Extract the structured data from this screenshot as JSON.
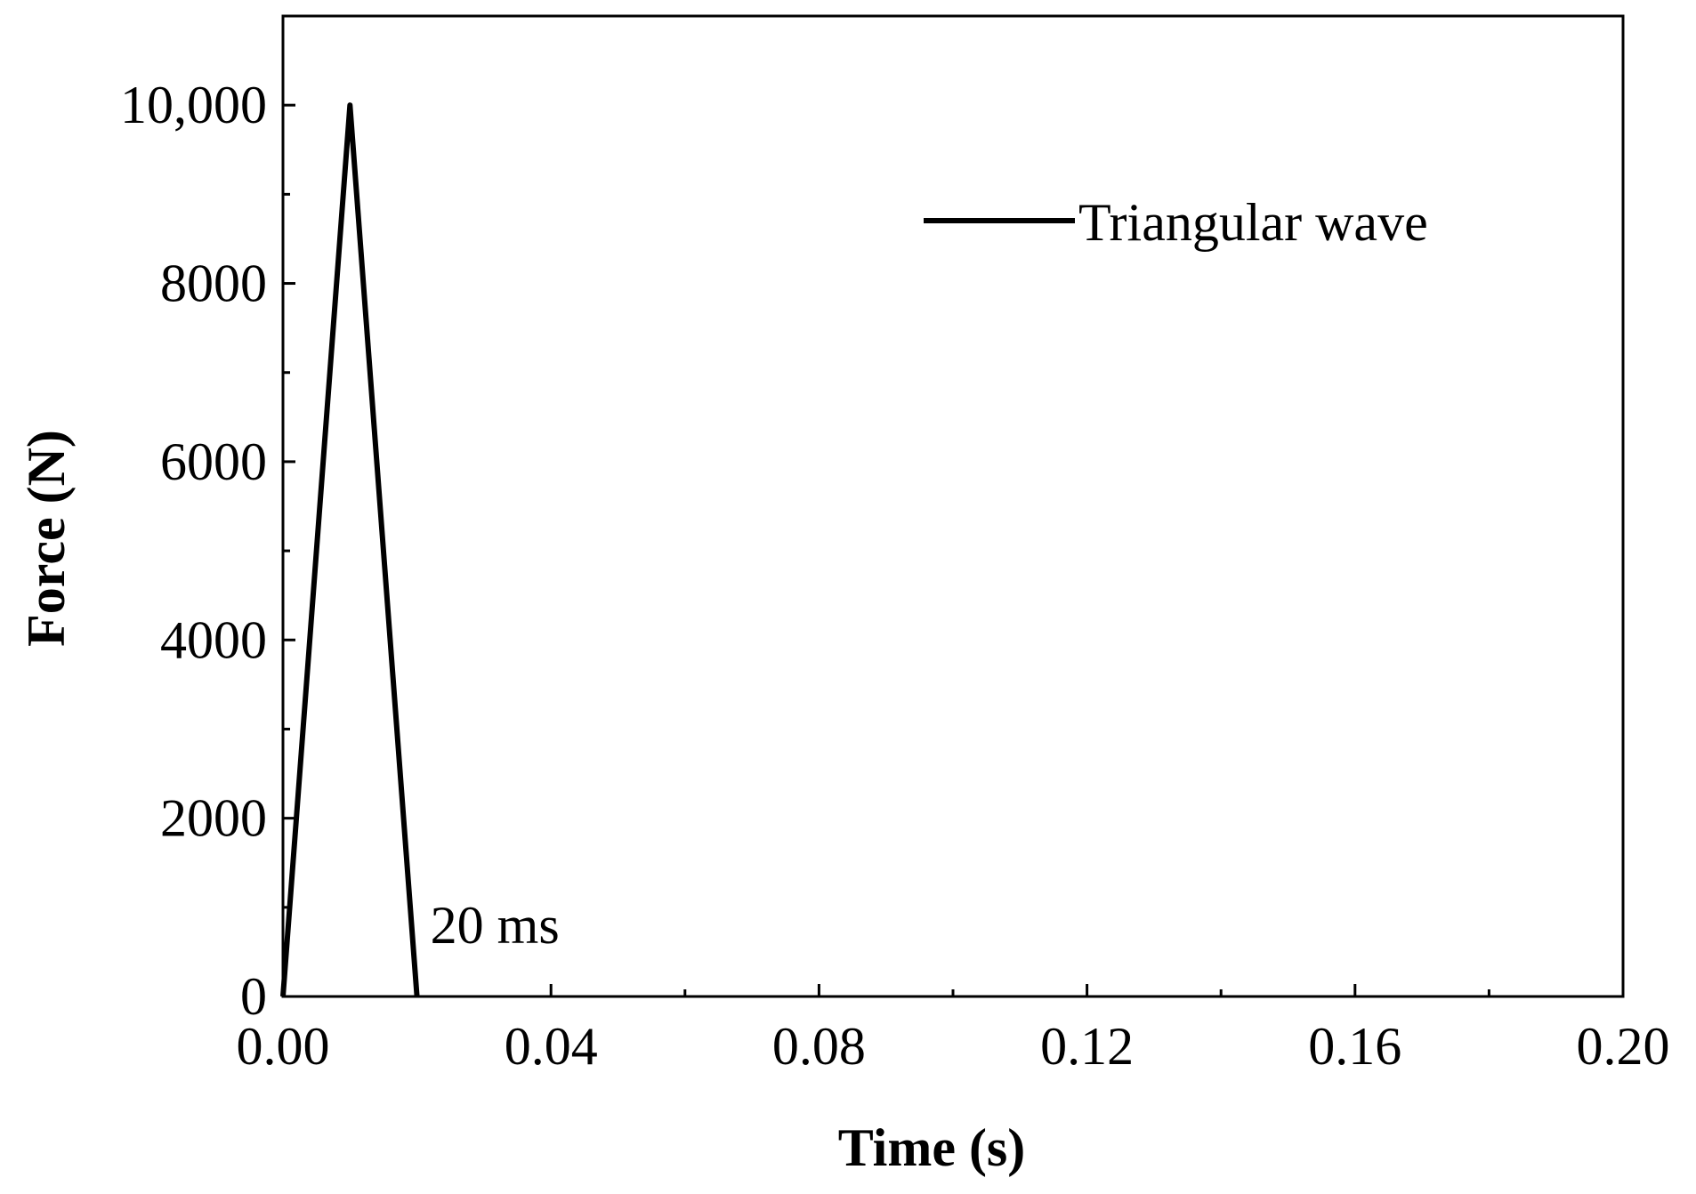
{
  "chart_data": {
    "type": "line",
    "title": "",
    "xlabel": "Time (s)",
    "ylabel": "Force (N)",
    "xlim": [
      0,
      0.2
    ],
    "ylim": [
      0,
      11000
    ],
    "x_ticks": [
      0,
      0.04,
      0.08,
      0.12,
      0.16,
      0.2
    ],
    "x_tick_labels": [
      "0.00",
      "0.04",
      "0.08",
      "0.12",
      "0.16",
      "0.20"
    ],
    "x_minor_ticks": [
      0.02,
      0.06,
      0.1,
      0.14,
      0.18
    ],
    "y_ticks": [
      0,
      2000,
      4000,
      6000,
      8000,
      10000
    ],
    "y_tick_labels": [
      "0",
      "2000",
      "4000",
      "6000",
      "8000",
      "10,000"
    ],
    "y_minor_ticks": [
      1000,
      3000,
      5000,
      7000,
      9000
    ],
    "grid": false,
    "legend_position": "top-right",
    "series": [
      {
        "name": "Triangular wave",
        "color": "#000000",
        "x": [
          0,
          0.01,
          0.02
        ],
        "y": [
          0,
          10000,
          0
        ]
      }
    ],
    "annotations": [
      {
        "text": "20 ms",
        "x": 0.022,
        "y": 800
      }
    ]
  }
}
